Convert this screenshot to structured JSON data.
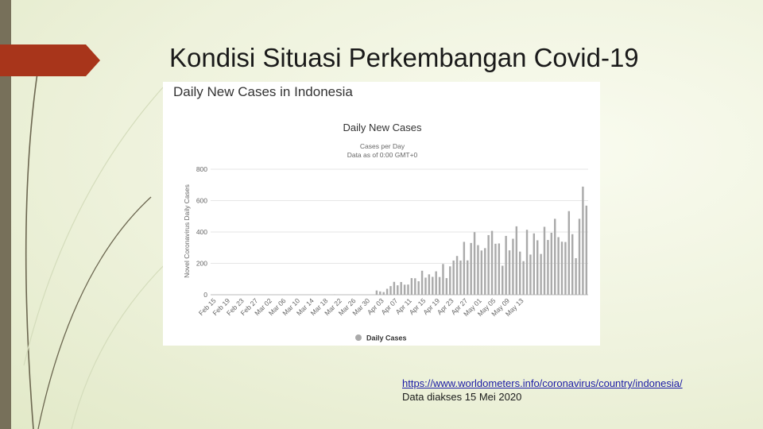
{
  "slide": {
    "title": "Kondisi Situasi Perkembangan Covid-19",
    "source_link": "https://www.worldometers.info/coronavirus/country/indonesia/",
    "access_note": "Data diakses 15 Mei 2020",
    "colors": {
      "left_bar": "#77705a",
      "accent": "#a8351b",
      "background": "#eef2dc"
    }
  },
  "panel": {
    "heading": "Daily New Cases in Indonesia"
  },
  "chart_data": {
    "type": "bar",
    "title": "Daily New Cases",
    "subtitle_lines": [
      "Cases per Day",
      "Data as of 0:00 GMT+0"
    ],
    "ylabel": "Novel Coronavirus Daily Cases",
    "xlabel": "",
    "ylim": [
      0,
      800
    ],
    "yticks": [
      0,
      200,
      400,
      600,
      800
    ],
    "grid": true,
    "bar_color": "#aaaaaa",
    "legend": {
      "label": "Daily Cases",
      "position": "bottom-center"
    },
    "x_tick_labels": [
      "Feb 15",
      "Feb 19",
      "Feb 23",
      "Feb 27",
      "Mar 02",
      "Mar 06",
      "Mar 10",
      "Mar 14",
      "Mar 18",
      "Mar 22",
      "Mar 26",
      "Mar 30",
      "Apr 03",
      "Apr 07",
      "Apr 11",
      "Apr 15",
      "Apr 19",
      "Apr 23",
      "Apr 27",
      "May 01",
      "May 05",
      "May 09",
      "May 13"
    ],
    "start_label": "Feb 15",
    "values": [
      0,
      0,
      0,
      0,
      0,
      0,
      0,
      0,
      0,
      0,
      0,
      0,
      0,
      0,
      0,
      0,
      0,
      0,
      0,
      0,
      0,
      0,
      0,
      0,
      0,
      0,
      0,
      0,
      0,
      0,
      0,
      0,
      0,
      0,
      0,
      2,
      0,
      0,
      0,
      0,
      0,
      0,
      0,
      0,
      0,
      0,
      0,
      27,
      21,
      17,
      38,
      55,
      82,
      60,
      81,
      64,
      65,
      106,
      105,
      86,
      153,
      109,
      130,
      114,
      149,
      113,
      196,
      106,
      181,
      218,
      247,
      218,
      337,
      219,
      330,
      399,
      316,
      282,
      297,
      380,
      407,
      325,
      327,
      185,
      375,
      283,
      357,
      436,
      275,
      214,
      414,
      256,
      391,
      347,
      260,
      433,
      349,
      395,
      484,
      367,
      338,
      336,
      533,
      386,
      233,
      484,
      689,
      568
    ]
  }
}
